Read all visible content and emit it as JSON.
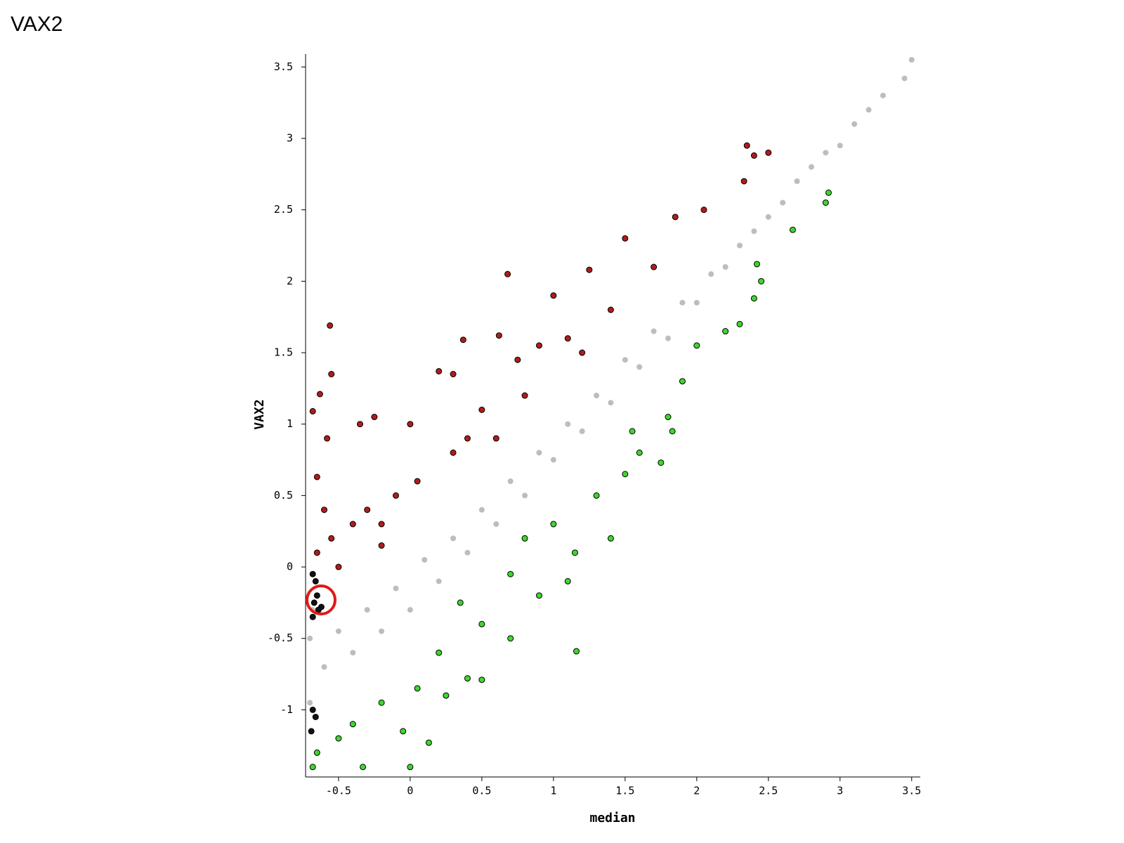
{
  "chart_data": {
    "type": "scatter",
    "title": "VAX2",
    "x_label": "median",
    "y_label": "VAX2",
    "xlim": [
      -0.73,
      3.56
    ],
    "ylim": [
      -1.47,
      3.59
    ],
    "xticks": [
      -0.5,
      0,
      0.5,
      1,
      1.5,
      2,
      2.5,
      3,
      3.5
    ],
    "yticks": [
      -1,
      -0.5,
      0,
      0.5,
      1,
      1.5,
      2,
      2.5,
      3,
      3.5
    ],
    "series": [
      {
        "color": "#bdbdbd",
        "outline": null,
        "x": [
          -0.7,
          -0.7,
          -0.68,
          -0.6,
          -0.5,
          -0.4,
          -0.3,
          -0.2,
          -0.1,
          0,
          0.1,
          0.2,
          0.3,
          0.4,
          0.5,
          0.6,
          0.7,
          0.8,
          0.9,
          1.0,
          1.1,
          1.2,
          1.3,
          1.4,
          1.5,
          1.6,
          1.7,
          1.8,
          1.9,
          2.0,
          2.1,
          2.2,
          2.3,
          2.4,
          2.5,
          2.6,
          2.7,
          2.8,
          2.9,
          3.0,
          3.1,
          3.2,
          3.3,
          3.45,
          3.5
        ],
        "y": [
          -0.95,
          -0.5,
          -0.3,
          -0.7,
          -0.45,
          -0.6,
          -0.3,
          -0.45,
          -0.15,
          -0.3,
          0.05,
          -0.1,
          0.2,
          0.1,
          0.4,
          0.3,
          0.6,
          0.5,
          0.8,
          0.75,
          1.0,
          0.95,
          1.2,
          1.15,
          1.45,
          1.4,
          1.65,
          1.6,
          1.85,
          1.85,
          2.05,
          2.1,
          2.25,
          2.35,
          2.45,
          2.55,
          2.7,
          2.8,
          2.9,
          2.95,
          3.1,
          3.2,
          3.3,
          3.42,
          3.55
        ]
      },
      {
        "color": "#b01c1c",
        "outline": "#000000",
        "x": [
          -0.68,
          -0.63,
          -0.56,
          -0.55,
          -0.58,
          -0.65,
          -0.6,
          -0.55,
          -0.65,
          -0.5,
          -0.4,
          -0.3,
          -0.25,
          -0.35,
          -0.2,
          -0.1,
          0,
          0.05,
          0.2,
          0.3,
          0.37,
          0.3,
          0.4,
          0.5,
          0.62,
          0.68,
          0.75,
          0.9,
          1.0,
          1.1,
          1.25,
          1.4,
          1.5,
          1.7,
          1.85,
          2.05,
          2.33,
          2.35,
          2.4,
          2.5,
          0.6,
          0.8,
          1.2,
          -0.2
        ],
        "y": [
          1.09,
          1.21,
          1.69,
          1.35,
          0.9,
          0.63,
          0.4,
          0.2,
          0.1,
          0.0,
          0.3,
          0.4,
          1.05,
          1.0,
          0.15,
          0.5,
          1.0,
          0.6,
          1.37,
          1.35,
          1.59,
          0.8,
          0.9,
          1.1,
          1.62,
          2.05,
          1.45,
          1.55,
          1.9,
          1.6,
          2.08,
          1.8,
          2.3,
          2.1,
          2.45,
          2.5,
          2.7,
          2.95,
          2.88,
          2.9,
          0.9,
          1.2,
          1.5,
          0.3
        ]
      },
      {
        "color": "#3fd62e",
        "outline": "#000000",
        "x": [
          -0.68,
          -0.65,
          -0.5,
          -0.4,
          -0.33,
          -0.2,
          -0.05,
          0,
          0.05,
          0.13,
          0.2,
          0.4,
          0.5,
          0.5,
          0.7,
          0.7,
          0.9,
          1.0,
          1.16,
          1.15,
          1.3,
          1.5,
          1.55,
          1.6,
          1.8,
          1.75,
          1.83,
          1.9,
          2.0,
          2.2,
          2.3,
          2.4,
          2.42,
          2.45,
          2.67,
          2.9,
          2.92,
          1.1,
          0.35,
          0.8,
          1.4,
          0.25
        ],
        "y": [
          -1.4,
          -1.3,
          -1.2,
          -1.1,
          -1.4,
          -0.95,
          -1.15,
          -1.4,
          -0.85,
          -1.23,
          -0.6,
          -0.78,
          -0.79,
          -0.4,
          -0.5,
          -0.05,
          -0.2,
          0.3,
          -0.59,
          0.1,
          0.5,
          0.65,
          0.95,
          0.8,
          1.05,
          0.73,
          0.95,
          1.3,
          1.55,
          1.65,
          1.7,
          1.88,
          2.12,
          2.0,
          2.36,
          2.55,
          2.62,
          -0.1,
          -0.25,
          0.2,
          0.2,
          -0.9
        ]
      },
      {
        "color": "#111111",
        "outline": "#000000",
        "x": [
          -0.68,
          -0.67,
          -0.66,
          -0.65,
          -0.62,
          -0.68,
          -0.69,
          -0.66,
          -0.68,
          -0.64
        ],
        "y": [
          -0.35,
          -0.25,
          -0.1,
          -0.2,
          -0.28,
          -1.0,
          -1.15,
          -1.05,
          -0.05,
          -0.3
        ]
      }
    ]
  }
}
